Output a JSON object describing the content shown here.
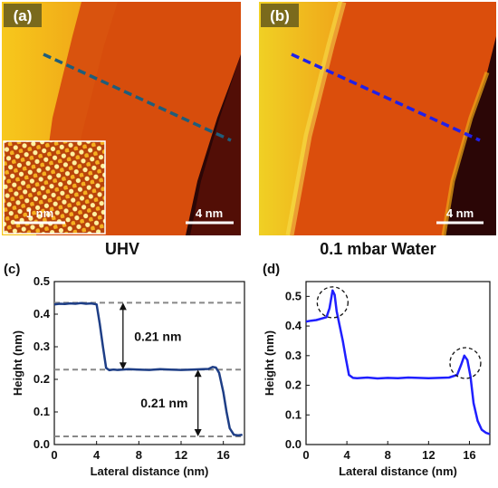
{
  "panels": [
    {
      "id": "a",
      "label": "(a)",
      "scale_bar": "4 nm",
      "inset_scale_bar": "1 nm",
      "caption": "UHV"
    },
    {
      "id": "b",
      "label": "(b)",
      "scale_bar": "4 nm",
      "caption": "0.1 mbar Water"
    }
  ],
  "colors": {
    "stm_bright": "#f5c518",
    "stm_mid": "#d84a0c",
    "stm_dark": "#2a0505",
    "line_c": "#1e3e86",
    "line_d": "#1f1fff",
    "label_box": "#7a6a1c"
  },
  "chart_data": [
    {
      "panel": "(c)",
      "type": "line",
      "xlabel": "Lateral distance (nm)",
      "ylabel": "Height (nm)",
      "xlim": [
        0,
        18
      ],
      "ylim": [
        0,
        0.5
      ],
      "xticks": [
        0,
        4,
        8,
        12,
        16
      ],
      "yticks": [
        0.0,
        0.1,
        0.2,
        0.3,
        0.4,
        0.5
      ],
      "series": [
        {
          "x": [
            0,
            0.5,
            1,
            1.5,
            2,
            2.5,
            3,
            3.5,
            4.0,
            4.3,
            4.6,
            4.9,
            5.2,
            5.6,
            6,
            7,
            8,
            9,
            10,
            11,
            12,
            13,
            14,
            14.6,
            15.0,
            15.3,
            15.6,
            16.0,
            16.3,
            16.6,
            17.0,
            17.4,
            17.8
          ],
          "y": [
            0.43,
            0.432,
            0.431,
            0.433,
            0.432,
            0.434,
            0.432,
            0.433,
            0.43,
            0.37,
            0.3,
            0.235,
            0.228,
            0.23,
            0.229,
            0.231,
            0.23,
            0.229,
            0.231,
            0.23,
            0.229,
            0.23,
            0.231,
            0.232,
            0.238,
            0.236,
            0.22,
            0.16,
            0.1,
            0.05,
            0.03,
            0.028,
            0.03
          ]
        }
      ],
      "reference_lines": [
        0.435,
        0.23,
        0.025
      ],
      "annotations": [
        "0.21 nm",
        "0.21 nm"
      ]
    },
    {
      "panel": "(d)",
      "type": "line",
      "xlabel": "Lateral distance (nm)",
      "ylabel": "Height (nm)",
      "xlim": [
        0,
        18
      ],
      "ylim": [
        0,
        0.55
      ],
      "xticks": [
        0,
        4,
        8,
        12,
        16
      ],
      "yticks": [
        0.0,
        0.1,
        0.2,
        0.3,
        0.4,
        0.5
      ],
      "series": [
        {
          "x": [
            0,
            0.5,
            1,
            1.5,
            2.0,
            2.3,
            2.6,
            2.8,
            3.0,
            3.3,
            3.6,
            3.9,
            4.2,
            4.6,
            5,
            6,
            7,
            8,
            9,
            10,
            11,
            12,
            13,
            14,
            14.8,
            15.2,
            15.5,
            15.8,
            16.1,
            16.4,
            16.8,
            17.2,
            17.6,
            18
          ],
          "y": [
            0.415,
            0.418,
            0.42,
            0.425,
            0.43,
            0.46,
            0.52,
            0.505,
            0.45,
            0.4,
            0.35,
            0.29,
            0.235,
            0.225,
            0.224,
            0.226,
            0.223,
            0.225,
            0.224,
            0.226,
            0.225,
            0.224,
            0.225,
            0.226,
            0.235,
            0.27,
            0.3,
            0.285,
            0.23,
            0.14,
            0.08,
            0.05,
            0.04,
            0.035
          ]
        }
      ],
      "highlight_circles_at": [
        [
          2.6,
          0.48
        ],
        [
          15.6,
          0.275
        ]
      ]
    }
  ]
}
